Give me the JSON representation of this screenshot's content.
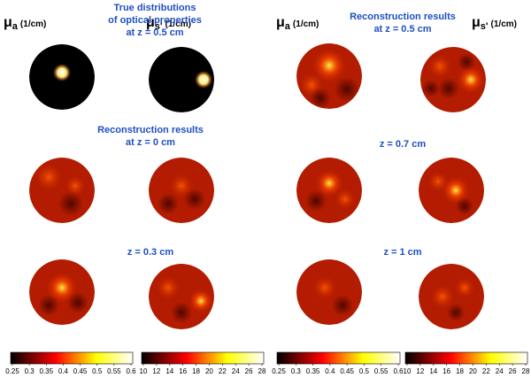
{
  "labels": [
    {
      "symbol": "μ",
      "sub": "a",
      "unit": "(1/cm)"
    },
    {
      "symbol": "μ",
      "sub": "s'",
      "unit": "(1/cm)"
    },
    {
      "symbol": "μ",
      "sub": "a",
      "unit": "(1/cm)"
    },
    {
      "symbol": "μ",
      "sub": "s'",
      "unit": "(1/cm)"
    }
  ],
  "headings": [
    [
      "True distributions",
      "of optical properties",
      "at z = 0.5 cm"
    ],
    [
      "Reconstruction results",
      "at z = 0 cm"
    ],
    [
      "z = 0.3 cm"
    ],
    [
      "Reconstruction results",
      "at z = 0.5 cm"
    ],
    [
      "z = 0.7 cm"
    ],
    [
      "z = 1 cm"
    ]
  ],
  "colorbars": [
    {
      "ticks": [
        "0.25",
        "0.3",
        "0.35",
        "0.4",
        "0.45",
        "0.5",
        "0.55",
        "0.6"
      ]
    },
    {
      "ticks": [
        "10",
        "12",
        "14",
        "16",
        "18",
        "20",
        "22",
        "24",
        "26",
        "28"
      ]
    },
    {
      "ticks": [
        "0.25",
        "0.3",
        "0.35",
        "0.4",
        "0.45",
        "0.5",
        "0.55",
        "0.6"
      ]
    },
    {
      "ticks": [
        "10",
        "12",
        "14",
        "16",
        "18",
        "20",
        "22",
        "24",
        "26",
        "28"
      ]
    }
  ]
}
